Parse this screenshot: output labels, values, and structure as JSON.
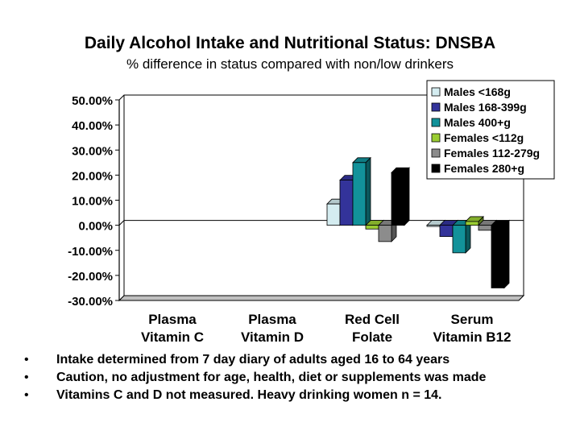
{
  "title": "Daily Alcohol Intake and Nutritional Status: DNSBA",
  "subtitle": "% difference in status compared with non/low drinkers",
  "chart_data": {
    "type": "bar",
    "categories": [
      [
        "Plasma",
        "Vitamin C"
      ],
      [
        "Plasma",
        "Vitamin D"
      ],
      [
        "Red Cell",
        "Folate"
      ],
      [
        "Serum",
        "Vitamin B12"
      ]
    ],
    "yticks": [
      "50.00%",
      "40.00%",
      "30.00%",
      "20.00%",
      "10.00%",
      "0.00%",
      "-10.00%",
      "-20.00%",
      "-30.00%"
    ],
    "ylim": [
      -30,
      50
    ],
    "grid": false,
    "legend_position": "top-right",
    "series": [
      {
        "name": "Males <168g",
        "color": "#d4ecf0",
        "values": [
          null,
          null,
          8.5,
          0
        ]
      },
      {
        "name": "Males 168-399g",
        "color": "#33339a",
        "values": [
          null,
          null,
          18,
          -4.5
        ]
      },
      {
        "name": "Males 400+g",
        "color": "#12929a",
        "values": [
          null,
          null,
          25,
          -11
        ]
      },
      {
        "name": "Females <112g",
        "color": "#9acd32",
        "values": [
          null,
          null,
          -1.5,
          1.5
        ]
      },
      {
        "name": "Females 112-279g",
        "color": "#8c8c8c",
        "values": [
          null,
          null,
          -6.5,
          -2
        ]
      },
      {
        "name": "Females 280+g",
        "color": "#000000",
        "values": [
          null,
          null,
          21,
          -25
        ]
      }
    ]
  },
  "notes": [
    {
      "bullet": "•",
      "text": "Intake determined from 7 day diary of adults aged 16 to 64 years"
    },
    {
      "bullet": "•",
      "text": "Caution, no adjustment for age, health, diet or supplements was made"
    },
    {
      "bullet": "•",
      "text": "Vitamins C and D not measured.  Heavy drinking women n = 14."
    }
  ]
}
